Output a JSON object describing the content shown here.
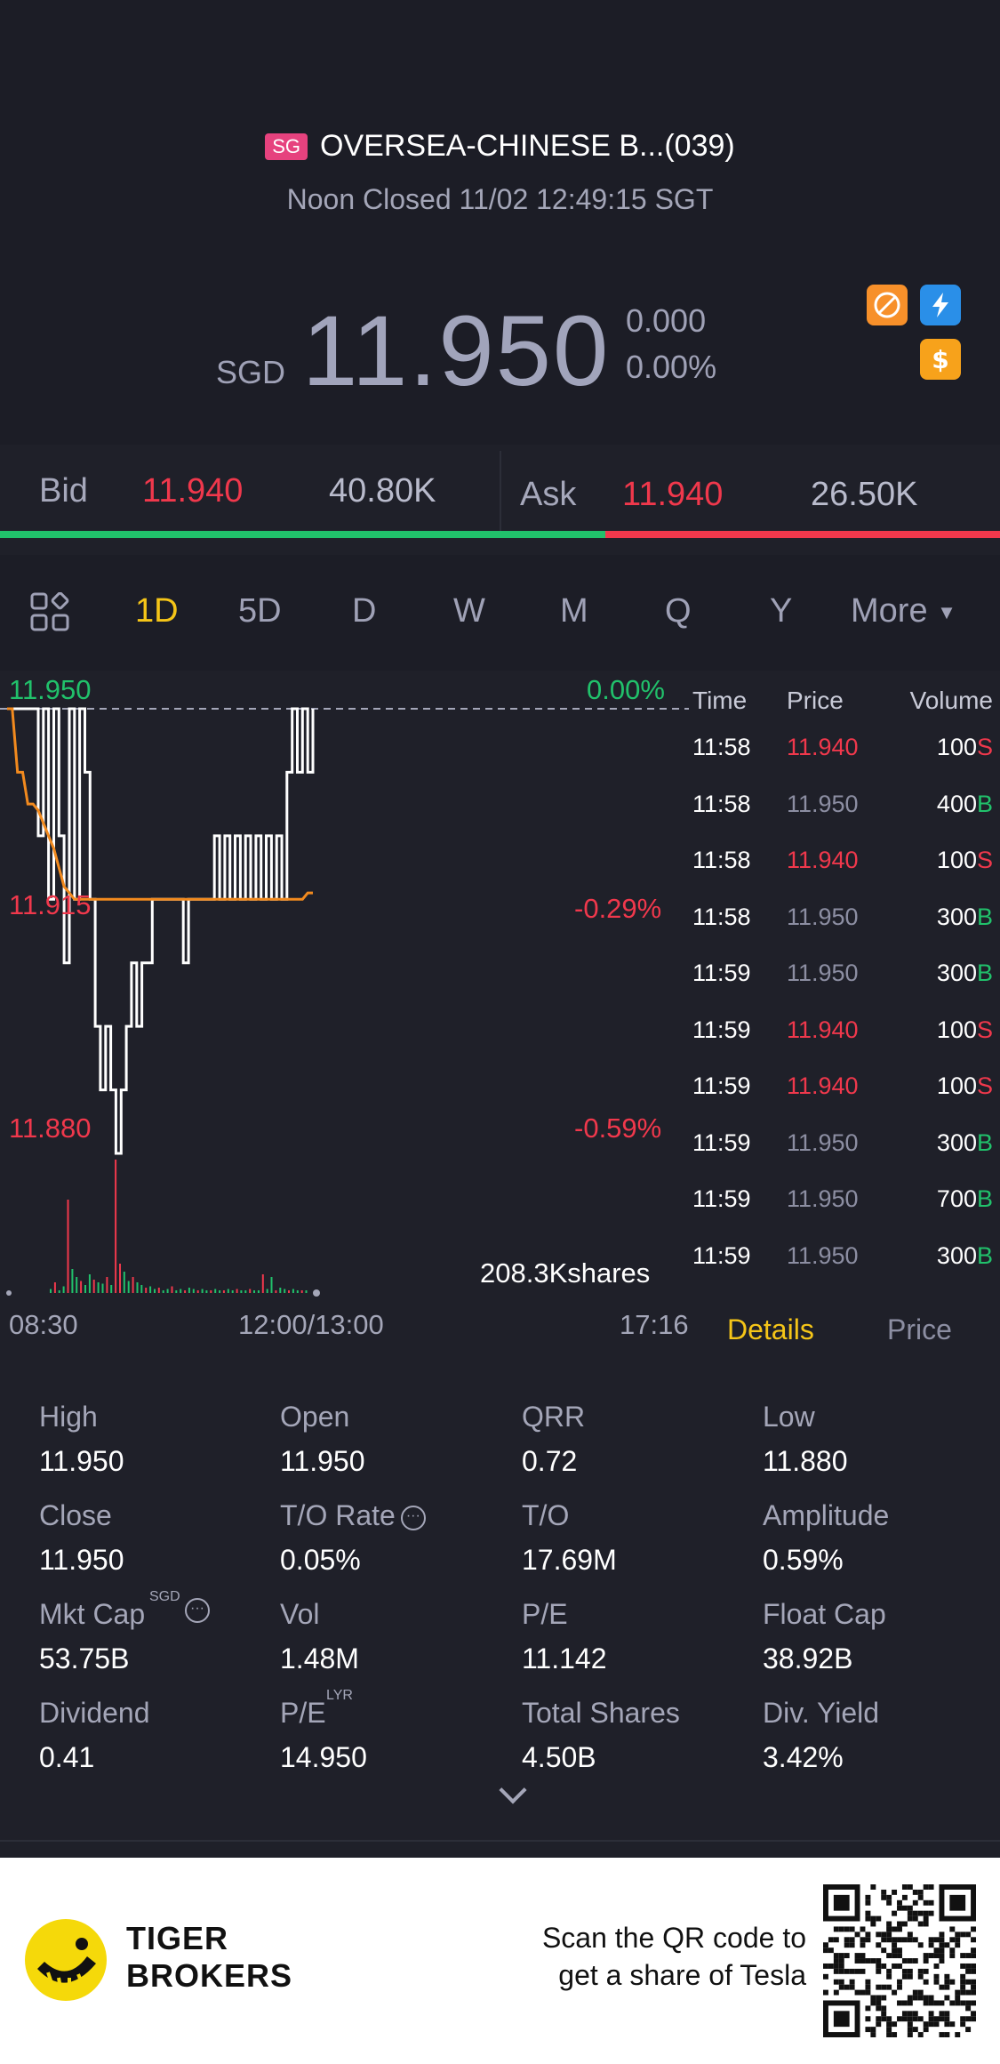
{
  "header": {
    "market_badge": "SG",
    "title": "OVERSEA-CHINESE B...(039)",
    "status": "Noon Closed 11/02 12:49:15 SGT",
    "currency": "SGD",
    "price": "11.950",
    "change": "0.000",
    "change_pct": "0.00%",
    "icons": [
      "no-short-icon",
      "lightning-icon",
      "dollar-icon"
    ]
  },
  "bid_ask": {
    "bid_label": "Bid",
    "bid_price": "11.940",
    "bid_size": "40.80K",
    "ask_label": "Ask",
    "ask_price": "11.940",
    "ask_size": "26.50K",
    "bid_ratio": 0.605
  },
  "tabs": {
    "items": [
      "1D",
      "5D",
      "D",
      "W",
      "M",
      "Q",
      "Y",
      "More"
    ],
    "active": "1D"
  },
  "chart": {
    "price_high": "11.950",
    "price_mid": "11.915",
    "price_low": "11.880",
    "pct_high": "0.00%",
    "pct_mid": "-0.29%",
    "pct_low": "-0.59%",
    "volume_label": "208.3Kshares",
    "time_start": "08:30",
    "time_mid": "12:00/13:00",
    "time_end": "17:16"
  },
  "chart_data": {
    "type": "line",
    "title": "",
    "xlabel": "",
    "ylabel": "",
    "ylim": [
      11.88,
      11.95
    ],
    "x_ticks": [
      "08:30",
      "12:00/13:00",
      "17:16"
    ],
    "y_ticks": [
      "11.950",
      "11.915",
      "11.880"
    ],
    "series": [
      {
        "values": [
          11.95,
          11.95,
          11.95,
          11.95,
          11.95,
          11.95,
          11.93,
          11.95,
          11.92,
          11.95,
          11.93,
          11.91,
          11.95,
          11.92,
          11.95,
          11.94,
          11.92,
          11.9,
          11.89,
          11.9,
          11.89,
          11.88,
          11.89,
          11.9,
          11.91,
          11.9,
          11.91,
          11.91,
          11.92,
          11.92,
          11.92,
          11.92,
          11.92,
          11.92,
          11.91,
          11.92,
          11.92,
          11.92,
          11.92,
          11.92,
          11.93,
          11.92,
          11.93,
          11.92,
          11.93,
          11.92,
          11.93,
          11.92,
          11.93,
          11.92,
          11.93,
          11.92,
          11.93,
          11.92,
          11.94,
          11.95,
          11.94,
          11.95,
          11.94,
          11.95
        ]
      },
      {
        "values": [
          11.95,
          11.95,
          11.94,
          11.94,
          11.935,
          11.935,
          11.934,
          11.932,
          11.93,
          11.928,
          11.925,
          11.922,
          11.921,
          11.92,
          11.92,
          11.92,
          11.92,
          11.92,
          11.92,
          11.92,
          11.92,
          11.92,
          11.92,
          11.92,
          11.92,
          11.92,
          11.92,
          11.92,
          11.92,
          11.92,
          11.92,
          11.92,
          11.92,
          11.92,
          11.92,
          11.92,
          11.92,
          11.92,
          11.92,
          11.92,
          11.92,
          11.92,
          11.92,
          11.92,
          11.92,
          11.92,
          11.92,
          11.92,
          11.92,
          11.92,
          11.92,
          11.92,
          11.92,
          11.92,
          11.92,
          11.92,
          11.92,
          11.92,
          11.921,
          11.921
        ]
      }
    ],
    "volume_bars": [
      3,
      8,
      2,
      5,
      70,
      18,
      12,
      9,
      6,
      14,
      10,
      8,
      7,
      12,
      6,
      100,
      22,
      16,
      9,
      12,
      8,
      6,
      4,
      5,
      3,
      4,
      2,
      3,
      5,
      2,
      3,
      2,
      4,
      3,
      2,
      3,
      2,
      2,
      3,
      2,
      2,
      3,
      2,
      3,
      2,
      2,
      3,
      2,
      2,
      14,
      3,
      12,
      2,
      4,
      3,
      2,
      3,
      2,
      2,
      2
    ]
  },
  "trades": {
    "headers": {
      "time": "Time",
      "price": "Price",
      "volume": "Volume"
    },
    "rows": [
      {
        "time": "11:58",
        "price": "11.940",
        "vol": "100",
        "side": "S"
      },
      {
        "time": "11:58",
        "price": "11.950",
        "vol": "400",
        "side": "B"
      },
      {
        "time": "11:58",
        "price": "11.940",
        "vol": "100",
        "side": "S"
      },
      {
        "time": "11:58",
        "price": "11.950",
        "vol": "300",
        "side": "B"
      },
      {
        "time": "11:59",
        "price": "11.950",
        "vol": "300",
        "side": "B"
      },
      {
        "time": "11:59",
        "price": "11.940",
        "vol": "100",
        "side": "S"
      },
      {
        "time": "11:59",
        "price": "11.940",
        "vol": "100",
        "side": "S"
      },
      {
        "time": "11:59",
        "price": "11.950",
        "vol": "300",
        "side": "B"
      },
      {
        "time": "11:59",
        "price": "11.950",
        "vol": "700",
        "side": "B"
      },
      {
        "time": "11:59",
        "price": "11.950",
        "vol": "300",
        "side": "B"
      }
    ],
    "sub_tab_details": "Details",
    "sub_tab_price": "Price"
  },
  "details": {
    "items": [
      {
        "label": "High",
        "value": "11.950"
      },
      {
        "label": "Open",
        "value": "11.950"
      },
      {
        "label": "QRR",
        "value": "0.72"
      },
      {
        "label": "Low",
        "value": "11.880"
      },
      {
        "label": "Close",
        "value": "11.950"
      },
      {
        "label": "T/O Rate",
        "value": "0.05%"
      },
      {
        "label": "T/O",
        "value": "17.69M"
      },
      {
        "label": "Amplitude",
        "value": "0.59%"
      },
      {
        "label": "Mkt Cap",
        "value": "53.75B"
      },
      {
        "label": "Vol",
        "value": "1.48M"
      },
      {
        "label": "P/E",
        "value": "11.142"
      },
      {
        "label": "Float Cap",
        "value": "38.92B"
      },
      {
        "label": "Dividend",
        "value": "0.41"
      },
      {
        "label": "P/E",
        "value": "14.950"
      },
      {
        "label": "Total Shares",
        "value": "4.50B"
      },
      {
        "label": "Div. Yield",
        "value": "3.42%"
      }
    ],
    "mktcap_sup": "SGD",
    "pe_sup": "LYR",
    "info_glyph": "···"
  },
  "footer": {
    "brand_line1": "TIGER",
    "brand_line2": "BROKERS",
    "promo_line1": "Scan the QR code to",
    "promo_line2": "get a share of Tesla"
  },
  "colors": {
    "red": "#f0384c",
    "green": "#21c16b",
    "accent": "#f5c518",
    "background": "#1f2029"
  }
}
